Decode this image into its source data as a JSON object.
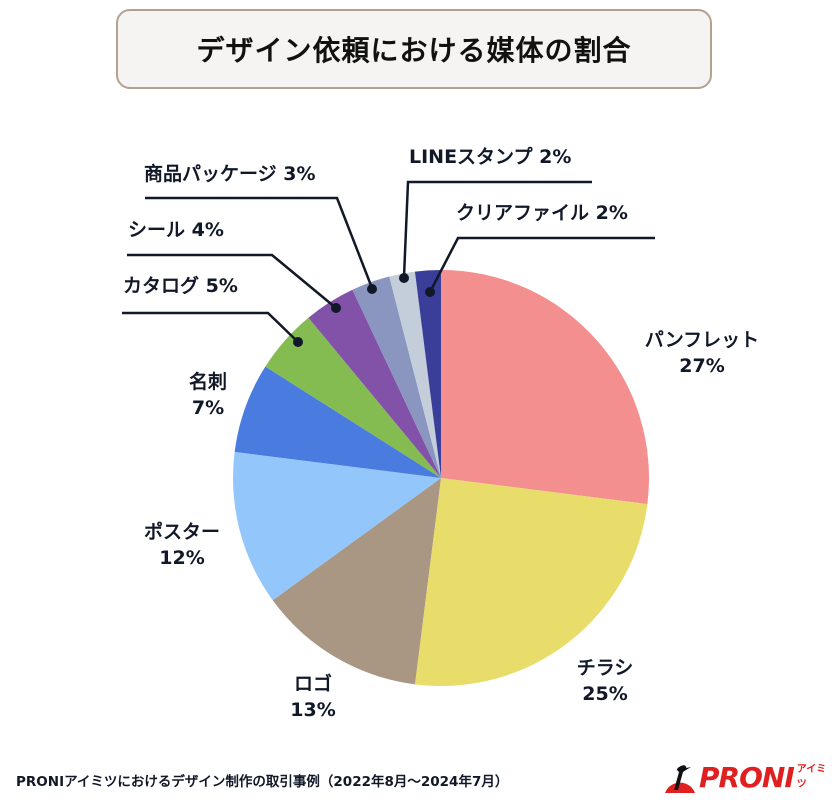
{
  "title": "デザイン依頼における媒体の割合",
  "footer": {
    "note": "PRONIアイミツにおけるデザイン制作の取引事例（2022年8月〜2024年7月）",
    "logo_text": "PRONI",
    "logo_sub": "アイミツ"
  },
  "chart_data": {
    "type": "pie",
    "title": "デザイン依頼における媒体の割合",
    "start_angle_deg": 0,
    "direction": "clockwise",
    "categories": [
      "パンフレット",
      "チラシ",
      "ロゴ",
      "ポスター",
      "名刺",
      "カタログ",
      "シール",
      "商品パッケージ",
      "LINEスタンプ",
      "クリアファイル"
    ],
    "values": [
      27,
      25,
      13,
      12,
      7,
      5,
      4,
      3,
      2,
      2
    ],
    "unit": "%",
    "colors": [
      "#f48f8f",
      "#e8dc6a",
      "#a99683",
      "#93c7fb",
      "#4a7bdf",
      "#84bc52",
      "#8252a8",
      "#8a96bf",
      "#c4cedb",
      "#3a3e98"
    ]
  },
  "labels": {
    "pamphlet": {
      "name": "パンフレット",
      "pct": "27%"
    },
    "flyer": {
      "name": "チラシ",
      "pct": "25%"
    },
    "logo": {
      "name": "ロゴ",
      "pct": "13%"
    },
    "poster": {
      "name": "ポスター",
      "pct": "12%"
    },
    "business_card": {
      "name": "名刺",
      "pct": "7%"
    },
    "catalog": "カタログ  5%",
    "sticker": "シール  4%",
    "package": "商品パッケージ  3%",
    "line_stamp": "LINEスタンプ  2%",
    "clear_file": "クリアファイル  2%"
  }
}
